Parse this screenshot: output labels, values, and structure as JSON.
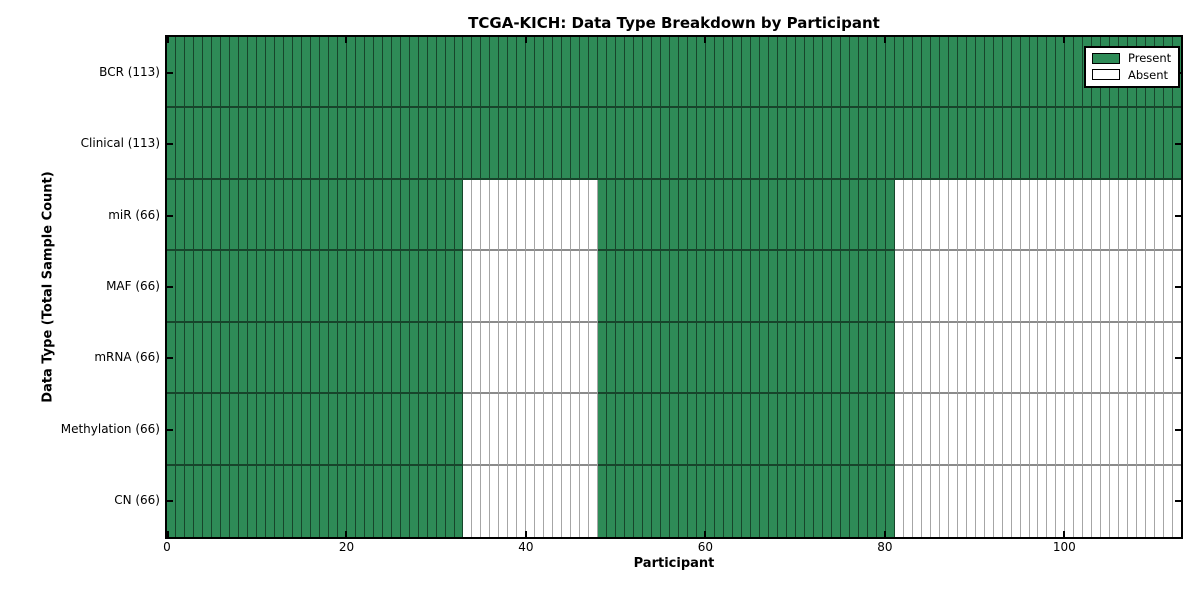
{
  "chart_data": {
    "type": "heatmap",
    "title": "TCGA-KICH: Data Type Breakdown by Participant",
    "xlabel": "Participant",
    "ylabel": "Data Type (Total Sample Count)",
    "xlim": [
      0,
      113
    ],
    "x_ticks": [
      0,
      20,
      40,
      60,
      80,
      100
    ],
    "n_participants": 113,
    "grid": false,
    "legend_position": "upper-right",
    "colors": {
      "present": "#2E8B57",
      "absent": "#FFFFFF"
    },
    "legend": [
      {
        "label": "Present",
        "color": "#2E8B57"
      },
      {
        "label": "Absent",
        "color": "#FFFFFF"
      }
    ],
    "rows": [
      {
        "label": "BCR (113)",
        "present_count": 113,
        "present_segments": [
          [
            0,
            113
          ]
        ]
      },
      {
        "label": "Clinical (113)",
        "present_count": 113,
        "present_segments": [
          [
            0,
            113
          ]
        ]
      },
      {
        "label": "miR (66)",
        "present_count": 66,
        "present_segments": [
          [
            0,
            33
          ],
          [
            48,
            81
          ]
        ]
      },
      {
        "label": "MAF (66)",
        "present_count": 66,
        "present_segments": [
          [
            0,
            33
          ],
          [
            48,
            81
          ]
        ]
      },
      {
        "label": "mRNA (66)",
        "present_count": 66,
        "present_segments": [
          [
            0,
            33
          ],
          [
            48,
            81
          ]
        ]
      },
      {
        "label": "Methylation (66)",
        "present_count": 66,
        "present_segments": [
          [
            0,
            33
          ],
          [
            48,
            81
          ]
        ]
      },
      {
        "label": "CN (66)",
        "present_count": 66,
        "present_segments": [
          [
            0,
            33
          ],
          [
            48,
            81
          ]
        ]
      }
    ]
  }
}
